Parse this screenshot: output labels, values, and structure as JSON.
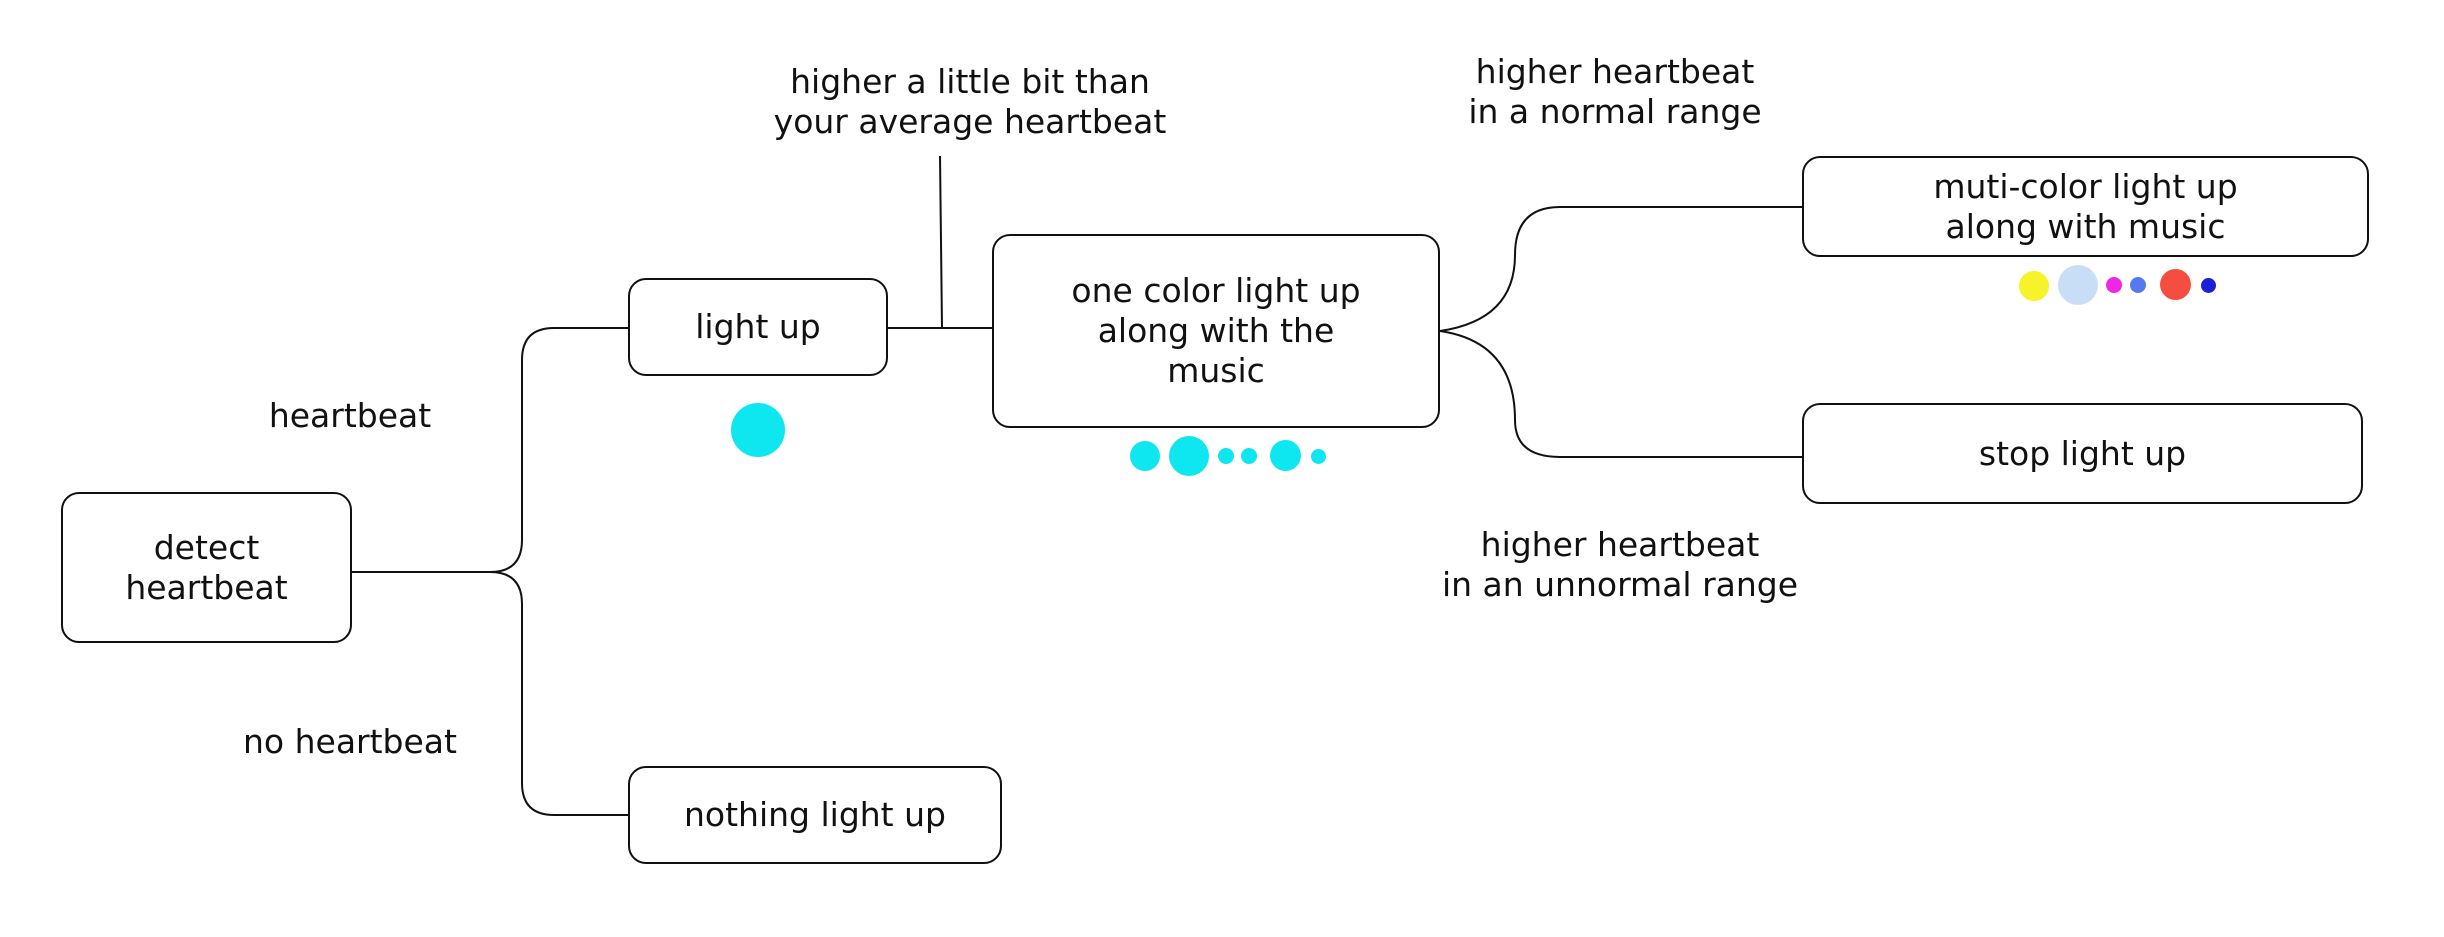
{
  "nodes": {
    "detect": "detect\nheartbeat",
    "light_up": "light up",
    "nothing": "nothing light up",
    "one_color": "one color light up\nalong with the\nmusic",
    "multi_color": "muti-color light up\nalong with music",
    "stop": "stop light up"
  },
  "edge_labels": {
    "heartbeat": "heartbeat",
    "no_heartbeat": "no heartbeat",
    "higher_little": "higher a little bit than\nyour average heartbeat",
    "higher_normal": "higher heartbeat\nin a normal range",
    "higher_unnormal": "higher heartbeat\nin an unnormal range"
  },
  "colors": {
    "line": "#111111",
    "cyan": "#0ee6f0",
    "yellow": "#f7f22a",
    "light_blue": "#c8def7",
    "magenta": "#ee27e6",
    "blue": "#5779f0",
    "red": "#f54d40",
    "navy": "#1c1fd6"
  }
}
